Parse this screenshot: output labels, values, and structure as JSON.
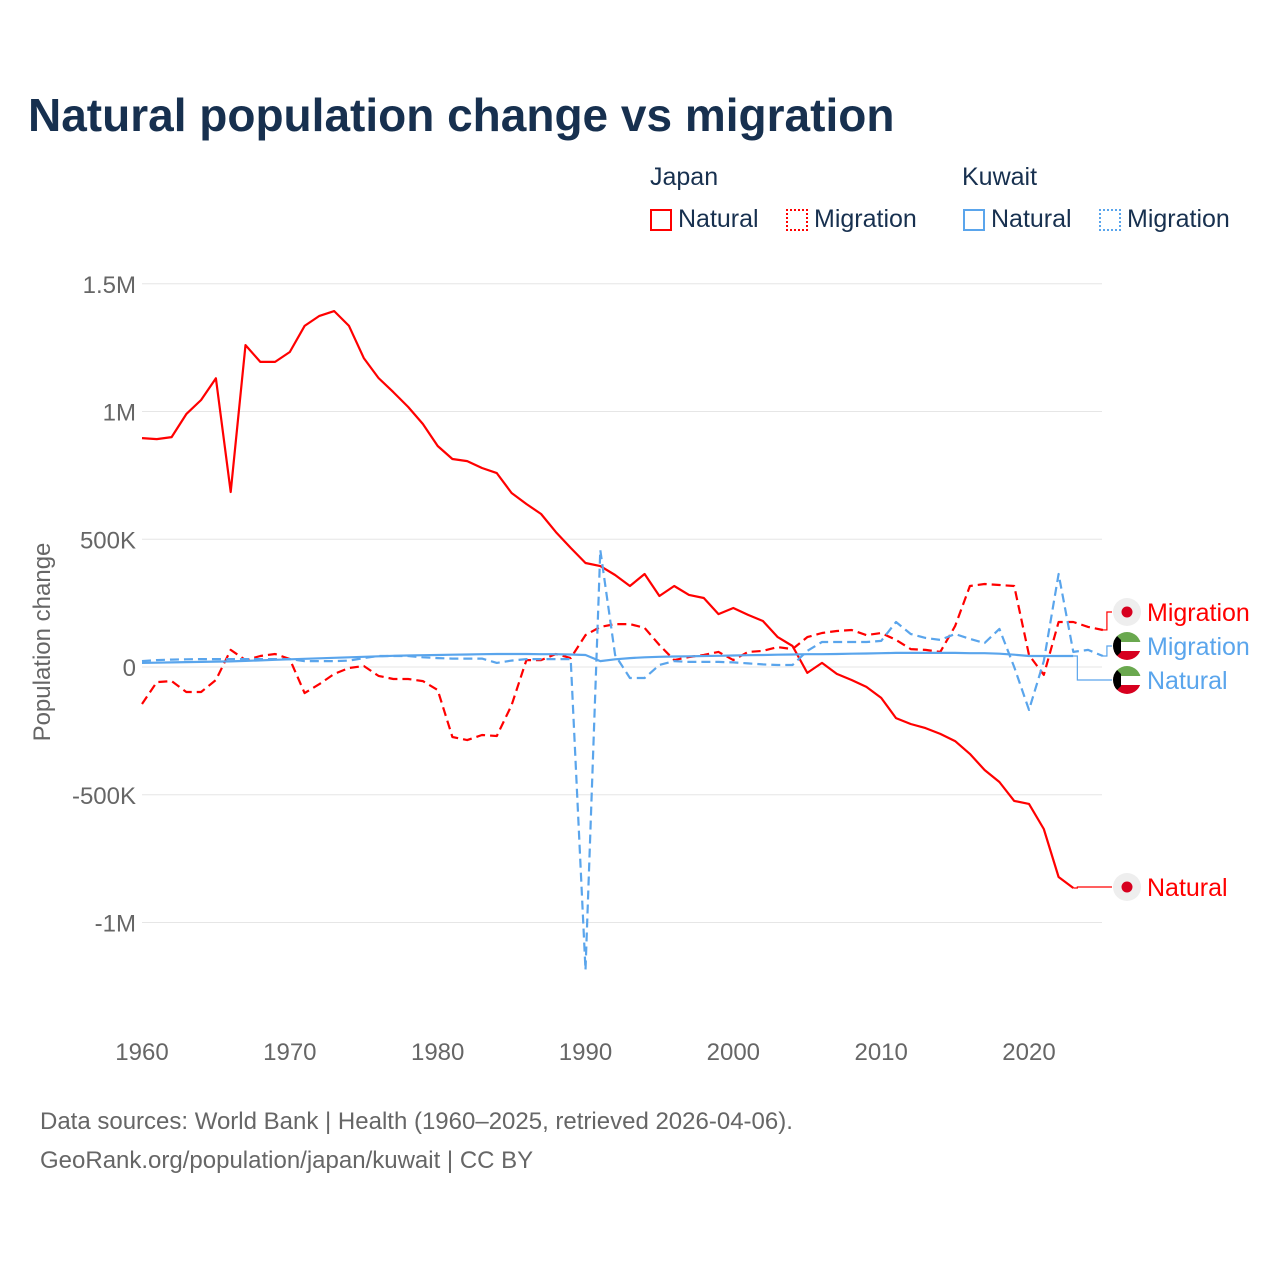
{
  "chart_data": {
    "type": "line",
    "title": "Natural population change vs migration",
    "xlabel": "",
    "ylabel": "Population change",
    "xlim": [
      1960,
      2025
    ],
    "ylim": [
      -1250000,
      1550000
    ],
    "x_ticks": [
      1960,
      1970,
      1980,
      1990,
      2000,
      2010,
      2020
    ],
    "x_tick_labels": [
      "1960",
      "1970",
      "1980",
      "1990",
      "2000",
      "2010",
      "2020"
    ],
    "y_ticks": [
      1500000,
      1000000,
      500000,
      0,
      -500000,
      -1000000
    ],
    "y_tick_labels": [
      "1.5M",
      "1M",
      "500K",
      "0",
      "-500K",
      "-1M"
    ],
    "grid": true,
    "legend_placement": "top-right",
    "legend": {
      "groups": [
        {
          "name": "Japan",
          "items": [
            "Natural",
            "Migration"
          ]
        },
        {
          "name": "Kuwait",
          "items": [
            "Natural",
            "Migration"
          ]
        }
      ]
    },
    "series": [
      {
        "name": "Natural",
        "country": "Japan",
        "color": "#ff0000",
        "dash": "solid",
        "end_label": "Natural",
        "x_start": 1960,
        "values": [
          896000,
          892000,
          900000,
          990000,
          1045000,
          1130000,
          685000,
          1260000,
          1194000,
          1194000,
          1233000,
          1335000,
          1374000,
          1393000,
          1335000,
          1209000,
          1131000,
          1076000,
          1018000,
          951000,
          865000,
          814000,
          806000,
          779000,
          759000,
          681000,
          638000,
          599000,
          528000,
          466000,
          407000,
          395000,
          360000,
          317000,
          364000,
          278000,
          317000,
          282000,
          270000,
          207000,
          231000,
          204000,
          180000,
          117000,
          82000,
          -23000,
          16000,
          -27000,
          -51000,
          -78000,
          -121000,
          -200000,
          -223000,
          -239000,
          -262000,
          -290000,
          -340000,
          -403000,
          -450000,
          -524000,
          -536000,
          -634000,
          -822000,
          -865000
        ]
      },
      {
        "name": "Migration",
        "country": "Japan",
        "color": "#ff0000",
        "dash": "dashed",
        "end_label": "Migration",
        "x_start": 1960,
        "values": [
          -145000,
          -59000,
          -55000,
          -98000,
          -98000,
          -51000,
          67000,
          27000,
          43000,
          51000,
          31000,
          -102000,
          -67000,
          -27000,
          -4000,
          4000,
          -35000,
          -47000,
          -47000,
          -55000,
          -90000,
          -274000,
          -286000,
          -266000,
          -270000,
          -149000,
          27000,
          27000,
          51000,
          35000,
          125000,
          157000,
          168000,
          168000,
          153000,
          86000,
          27000,
          39000,
          47000,
          59000,
          27000,
          59000,
          63000,
          78000,
          70000,
          117000,
          133000,
          141000,
          145000,
          125000,
          133000,
          106000,
          70000,
          67000,
          59000,
          160000,
          317000,
          325000,
          321000,
          317000,
          47000,
          -31000,
          176000,
          176000,
          157000,
          145000
        ]
      },
      {
        "name": "Natural",
        "country": "Kuwait",
        "color": "#5aa5ec",
        "dash": "solid",
        "end_label": "Natural",
        "x_start": 1960,
        "values": [
          16000,
          17000,
          18000,
          19000,
          20000,
          21000,
          22000,
          24000,
          26000,
          28000,
          30000,
          32000,
          34000,
          36000,
          38000,
          40000,
          42000,
          44000,
          45000,
          46000,
          47000,
          48000,
          49000,
          50000,
          51000,
          51000,
          51000,
          50000,
          50000,
          49000,
          47000,
          23000,
          30000,
          35000,
          38000,
          40000,
          41000,
          42000,
          43000,
          44000,
          45000,
          46000,
          47000,
          48000,
          49000,
          50000,
          50000,
          51000,
          52000,
          53000,
          54000,
          55000,
          55000,
          55000,
          55000,
          55000,
          54000,
          54000,
          52000,
          48000,
          43000,
          43000,
          43000,
          43000
        ]
      },
      {
        "name": "Migration",
        "country": "Kuwait",
        "color": "#5aa5ec",
        "dash": "dashed",
        "end_label": "Migration",
        "x_start": 1960,
        "values": [
          23000,
          27000,
          29000,
          30000,
          31000,
          31000,
          31000,
          31000,
          31000,
          31000,
          31000,
          23000,
          23000,
          23000,
          25000,
          35000,
          43000,
          43000,
          43000,
          38000,
          35000,
          33000,
          33000,
          33000,
          16000,
          25000,
          31000,
          31000,
          31000,
          31000,
          -1186000,
          458000,
          47000,
          -43000,
          -43000,
          8000,
          23000,
          20000,
          20000,
          20000,
          18000,
          14000,
          10000,
          8000,
          8000,
          63000,
          98000,
          98000,
          98000,
          98000,
          102000,
          176000,
          129000,
          114000,
          106000,
          129000,
          110000,
          94000,
          149000,
          0,
          -168000,
          23000,
          364000,
          59000,
          67000,
          43000
        ]
      }
    ]
  },
  "source_line1": "Data sources: World Bank | Health (1960–2025, retrieved 2026-04-06).",
  "source_line2": "GeoRank.org/population/japan/kuwait | CC BY"
}
